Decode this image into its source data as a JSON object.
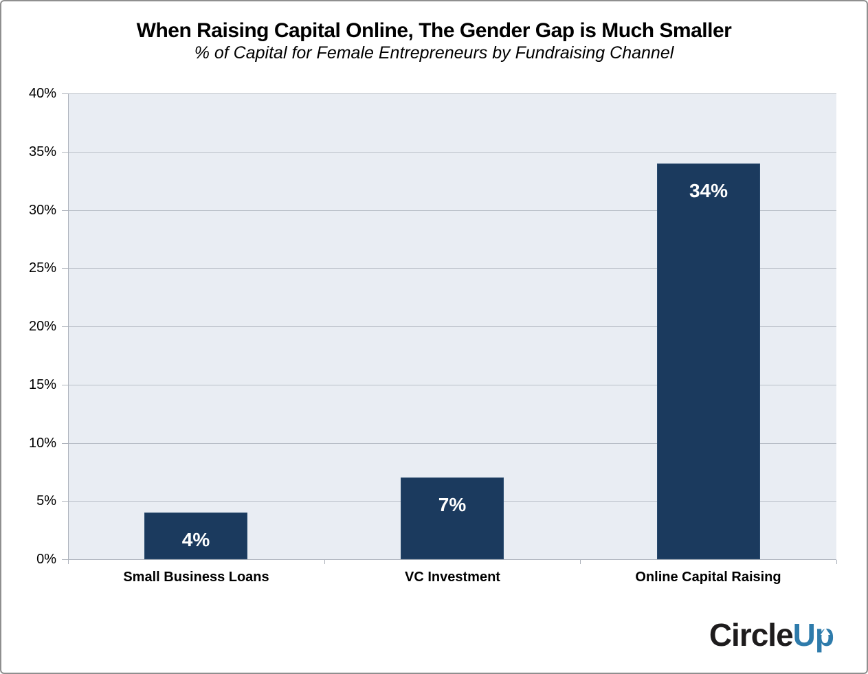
{
  "chart_data": {
    "type": "bar",
    "title": "When Raising Capital Online, The Gender Gap is Much Smaller",
    "subtitle": "% of Capital for Female Entrepreneurs by Fundraising Channel",
    "categories": [
      "Small Business Loans",
      "VC Investment",
      "Online Capital Raising"
    ],
    "values": [
      4,
      7,
      34
    ],
    "value_labels": [
      "4%",
      "7%",
      "34%"
    ],
    "ylim": [
      0,
      40
    ],
    "yticks": [
      0,
      5,
      10,
      15,
      20,
      25,
      30,
      35,
      40
    ],
    "ytick_labels": [
      "0%",
      "5%",
      "10%",
      "15%",
      "20%",
      "25%",
      "30%",
      "35%",
      "40%"
    ],
    "grid": true,
    "legend": false,
    "bar_color": "#1b3a5e",
    "bar_border_color": "#27496d",
    "value_label_color": "#ffffff",
    "plot_bg": "#e9edf3",
    "gridline_color": "#b8bec7",
    "axis_color": "#adb2bb"
  },
  "logo": {
    "part_black": "Circle",
    "part_blue": "Up",
    "black_color": "#1e1c1d",
    "blue_color": "#2e7bab"
  }
}
